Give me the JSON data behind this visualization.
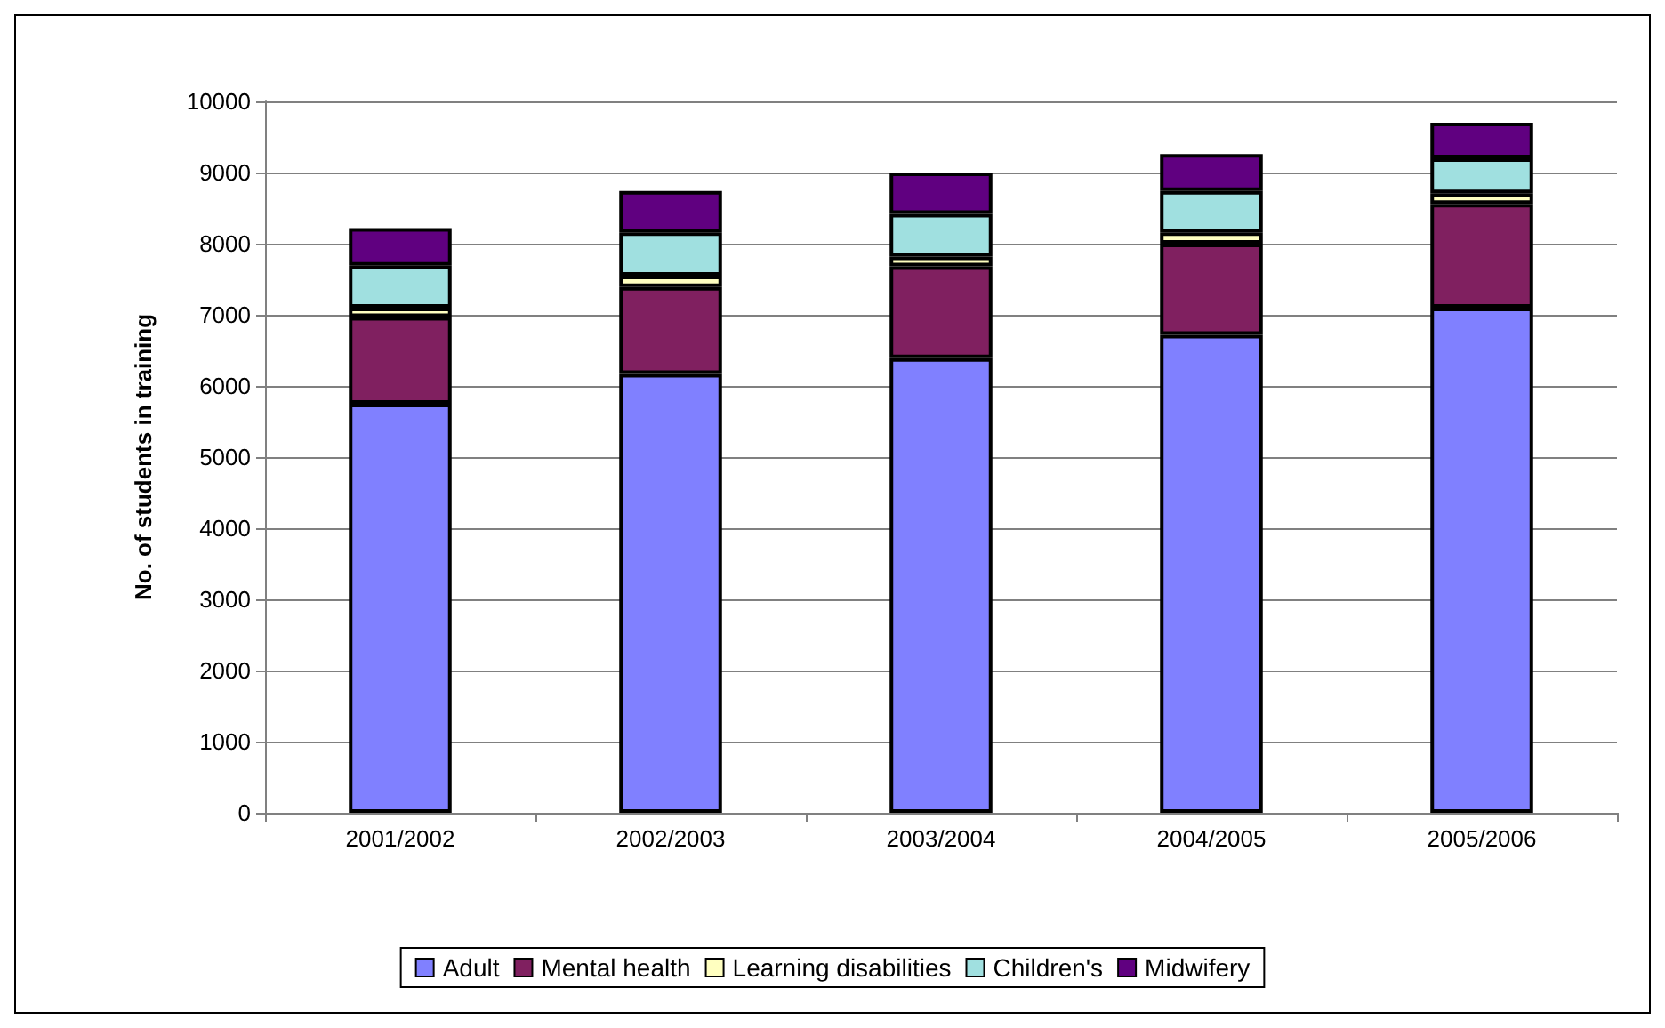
{
  "chart_data": {
    "type": "bar",
    "stacked": true,
    "ylabel": "No. of students in training",
    "categories": [
      "2001/2002",
      "2002/2003",
      "2003/2004",
      "2004/2005",
      "2005/2006"
    ],
    "series": [
      {
        "name": "Adult",
        "color": "#8080ff",
        "values": [
          5750,
          6170,
          6390,
          6720,
          7100
        ]
      },
      {
        "name": "Mental health",
        "color": "#802060",
        "values": [
          1220,
          1220,
          1290,
          1280,
          1460
        ]
      },
      {
        "name": "Learning disabilities",
        "color": "#ffffc0",
        "values": [
          130,
          160,
          140,
          160,
          150
        ]
      },
      {
        "name": "Children's",
        "color": "#a0e0e0",
        "values": [
          590,
          610,
          600,
          580,
          490
        ]
      },
      {
        "name": "Midwifery",
        "color": "#600080",
        "values": [
          530,
          580,
          580,
          520,
          500
        ]
      }
    ],
    "ylim": [
      0,
      10000
    ],
    "yticks": [
      0,
      1000,
      2000,
      3000,
      4000,
      5000,
      6000,
      7000,
      8000,
      9000,
      10000
    ],
    "grid": "y",
    "legend": "bottom"
  }
}
